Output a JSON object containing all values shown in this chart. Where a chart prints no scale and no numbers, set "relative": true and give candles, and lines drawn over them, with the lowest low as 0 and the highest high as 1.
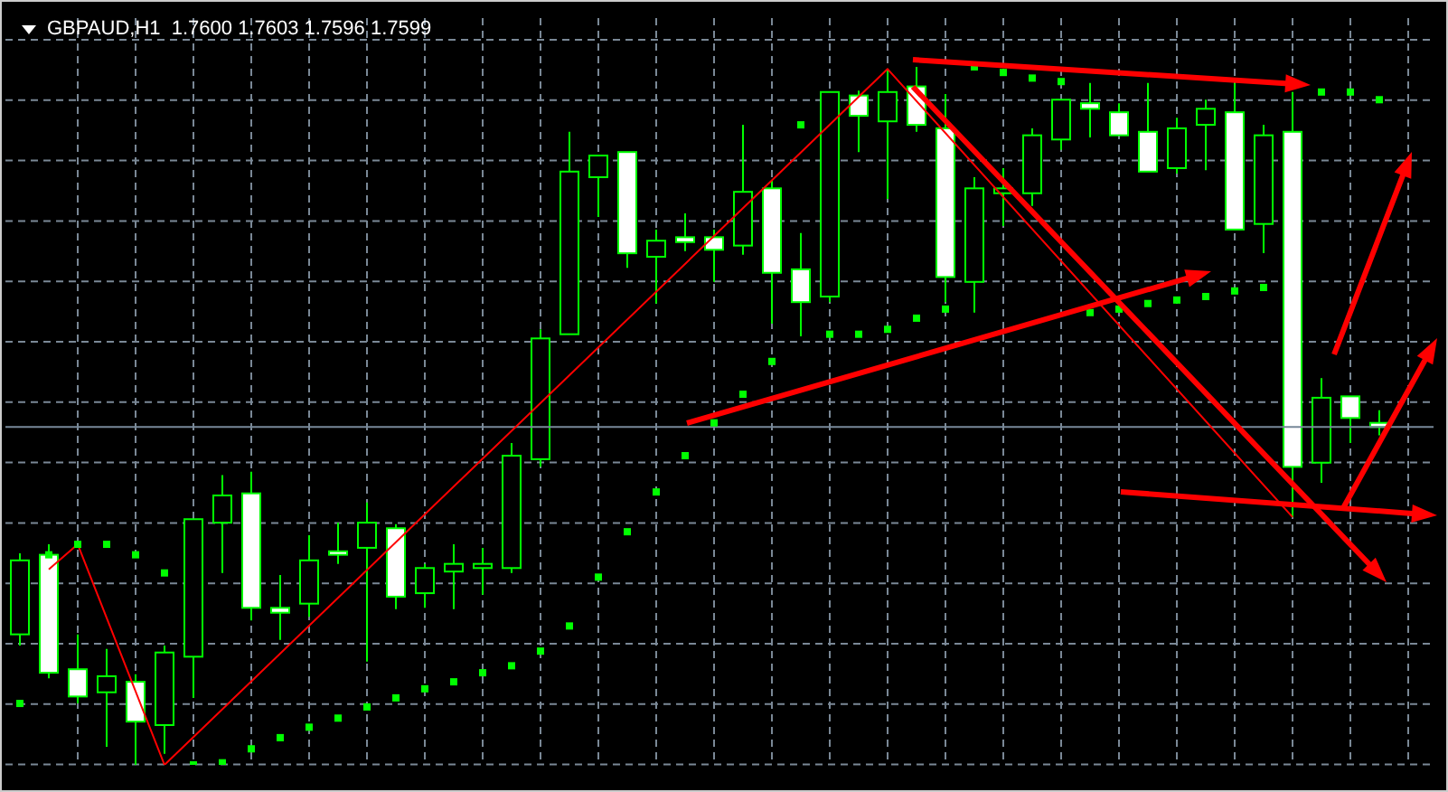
{
  "chart_data": {
    "type": "candlestick",
    "title": "GBPAUD,H1  1.7600 1.7603 1.7596 1.7599",
    "relative": true,
    "grid": true,
    "categories": [
      null,
      null,
      null,
      null,
      null,
      null,
      null,
      null,
      null,
      null,
      null,
      null,
      null,
      null,
      null,
      null,
      null,
      null,
      null,
      null,
      null,
      null,
      null,
      null,
      null,
      null,
      null,
      null,
      null,
      null,
      null,
      null,
      null,
      null,
      null,
      null,
      null,
      null,
      null,
      null,
      null,
      null,
      null,
      null,
      null,
      null,
      null,
      null
    ],
    "ref_lines": [
      {
        "axis": "y",
        "value": 0.484,
        "color": "#778899"
      }
    ],
    "series": [
      {
        "type": "candlestick",
        "color": "#00ff00",
        "ohlc": [
          [
            0.187,
            0.303,
            0.171,
            0.293
          ],
          [
            0.301,
            0.316,
            0.124,
            0.132
          ],
          [
            0.137,
            0.187,
            0.088,
            0.098
          ],
          [
            0.104,
            0.166,
            0.026,
            0.127
          ],
          [
            0.119,
            0.13,
            0,
            0.062
          ],
          [
            0.057,
            0.171,
            0.016,
            0.161
          ],
          [
            0.155,
            0.352,
            0.096,
            0.352
          ],
          [
            0.347,
            0.415,
            0.275,
            0.386
          ],
          [
            0.389,
            0.42,
            0.207,
            0.225
          ],
          [
            0.225,
            0.272,
            0.179,
            0.218
          ],
          [
            0.231,
            0.329,
            0.212,
            0.293
          ],
          [
            0.306,
            0.347,
            0.288,
            0.301
          ],
          [
            0.311,
            0.376,
            0.148,
            0.347
          ],
          [
            0.339,
            0.345,
            0.223,
            0.241
          ],
          [
            0.246,
            0.288,
            0.225,
            0.282
          ],
          [
            0.277,
            0.316,
            0.223,
            0.288
          ],
          [
            0.282,
            0.311,
            0.244,
            0.288
          ],
          [
            0.282,
            0.461,
            0.275,
            0.443
          ],
          [
            0.438,
            0.624,
            0.427,
            0.611
          ],
          [
            0.617,
            0.907,
            0.617,
            0.85
          ],
          [
            0.842,
            0.873,
            0.785,
            0.873
          ],
          [
            0.878,
            0.878,
            0.712,
            0.733
          ],
          [
            0.728,
            0.767,
            0.661,
            0.751
          ],
          [
            0.756,
            0.79,
            0.736,
            0.749
          ],
          [
            0.756,
            0.767,
            0.692,
            0.738
          ],
          [
            0.744,
            0.917,
            0.731,
            0.821
          ],
          [
            0.826,
            0.837,
            0.632,
            0.705
          ],
          [
            0.71,
            0.762,
            0.614,
            0.663
          ],
          [
            0.671,
            0.964,
            0.663,
            0.964
          ],
          [
            0.959,
            0.966,
            0.878,
            0.93
          ],
          [
            0.922,
            0.997,
            0.811,
            0.964
          ],
          [
            0.972,
            1,
            0.907,
            0.917
          ],
          [
            0.912,
            0.961,
            0.663,
            0.699
          ],
          [
            0.692,
            0.842,
            0.648,
            0.826
          ],
          [
            0.819,
            0.855,
            0.772,
            0.826
          ],
          [
            0.819,
            0.912,
            0.801,
            0.902
          ],
          [
            0.896,
            0.953,
            0.881,
            0.953
          ],
          [
            0.948,
            0.977,
            0.899,
            0.94
          ],
          [
            0.935,
            0.948,
            0.902,
            0.902
          ],
          [
            0.907,
            0.977,
            0.85,
            0.85
          ],
          [
            0.855,
            0.927,
            0.847,
            0.912
          ],
          [
            0.917,
            0.953,
            0.852,
            0.94
          ],
          [
            0.935,
            0.977,
            0.767,
            0.767
          ],
          [
            0.775,
            0.917,
            0.733,
            0.902
          ],
          [
            0.907,
            0.964,
            0.355,
            0.427
          ],
          [
            0.433,
            0.554,
            0.404,
            0.526
          ],
          [
            0.528,
            0.528,
            0.461,
            0.497
          ],
          [
            0.49,
            0.508,
            0.472,
            0.484
          ]
        ]
      },
      {
        "type": "scatter",
        "color": "#00ff00",
        "marker": "square",
        "values": [
          0.088,
          0.301,
          0.316,
          0.316,
          0.301,
          0.275,
          0,
          0.003,
          0.023,
          0.039,
          0.054,
          0.067,
          0.083,
          0.096,
          0.109,
          0.119,
          0.132,
          0.142,
          0.163,
          0.199,
          0.269,
          0.334,
          0.391,
          0.443,
          0.49,
          0.531,
          0.578,
          0.917,
          0.617,
          0.617,
          0.624,
          0.64,
          0.653,
          1,
          0.992,
          0.984,
          0.979,
          0.648,
          0.653,
          0.661,
          0.666,
          0.671,
          0.679,
          0.684,
          null,
          0.964,
          0.964,
          0.953
        ]
      },
      {
        "type": "line",
        "color": "#ff0000",
        "line_style": "solid",
        "values": [
          null,
          0.28,
          0.316,
          null,
          null,
          0,
          null,
          null,
          null,
          null,
          null,
          null,
          null,
          null,
          null,
          null,
          null,
          null,
          null,
          null,
          null,
          null,
          null,
          null,
          null,
          null,
          null,
          null,
          null,
          null,
          0.997,
          null,
          null,
          null,
          null,
          null,
          null,
          null,
          null,
          null,
          null,
          null,
          null,
          null,
          0.355,
          null,
          null,
          null
        ]
      }
    ]
  }
}
